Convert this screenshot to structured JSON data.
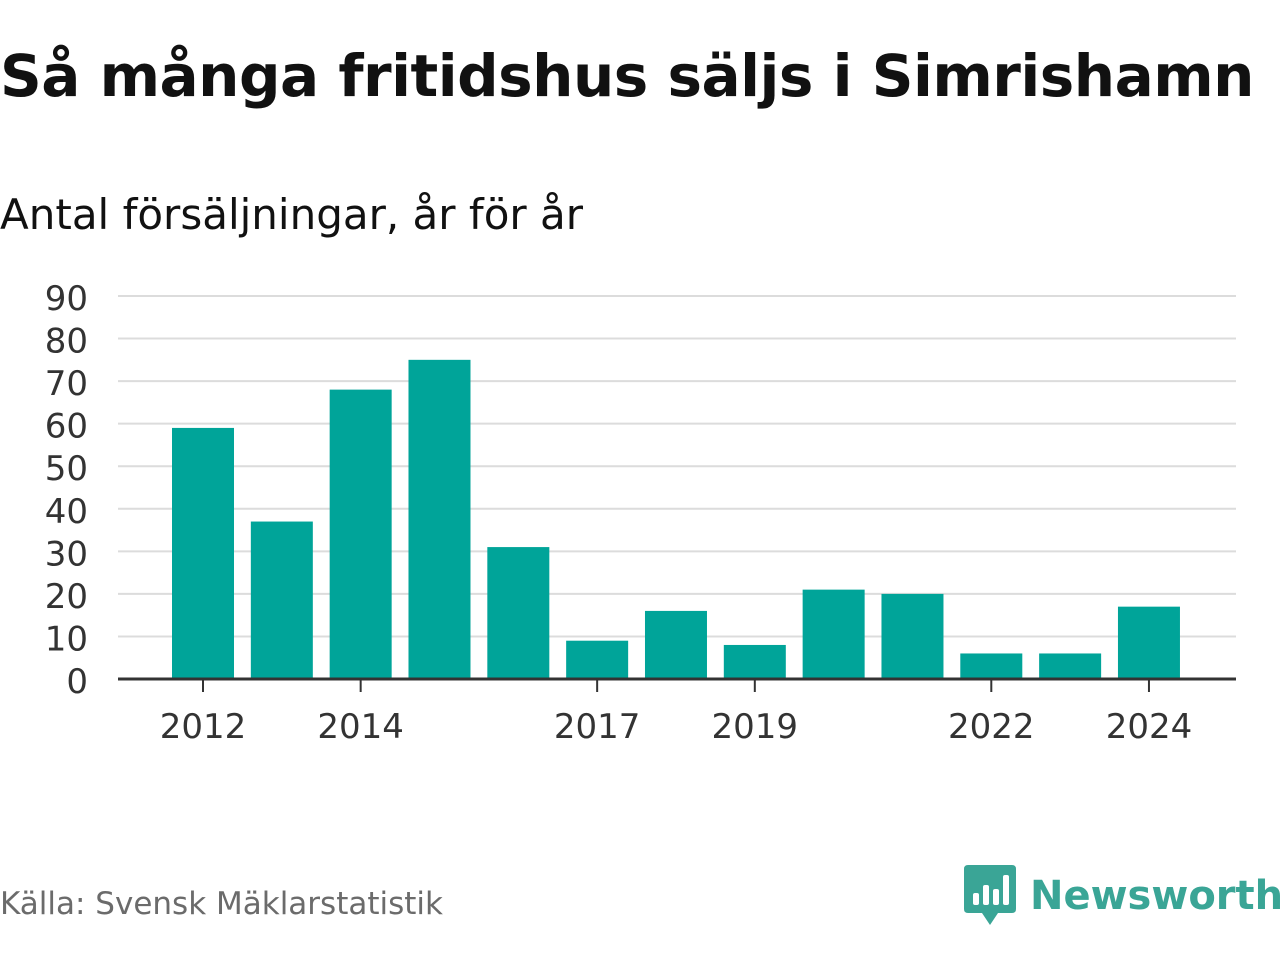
{
  "title": "Så många fritidshus säljs i Simrishamn",
  "subtitle": "Antal försäljningar, år för år",
  "source": "Källa: Svensk Mäklarstatistik",
  "brand": {
    "name": "Newsworthy",
    "icon": "newsworthy-bar-chart-logo",
    "color": "#3aa596"
  },
  "colors": {
    "bar": "#00a499",
    "grid": "#dcdcdc",
    "axis": "#333333",
    "text": "#333333"
  },
  "chart_data": {
    "type": "bar",
    "categories": [
      "2012",
      "2013",
      "2014",
      "2015",
      "2016",
      "2017",
      "2018",
      "2019",
      "2020",
      "2021",
      "2022",
      "2023",
      "2024"
    ],
    "values": [
      59,
      37,
      68,
      75,
      31,
      9,
      16,
      8,
      21,
      20,
      6,
      6,
      17
    ],
    "xtick_labels": [
      "2012",
      "2014",
      "2017",
      "2019",
      "2022",
      "2024"
    ],
    "yticks": [
      0,
      10,
      20,
      30,
      40,
      50,
      60,
      70,
      80,
      90
    ],
    "ylim": [
      0,
      90
    ],
    "grid": true,
    "legend": false
  }
}
